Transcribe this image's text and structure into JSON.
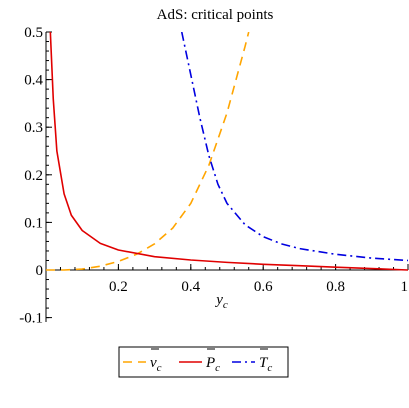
{
  "chart_data": {
    "type": "line",
    "title": "AdS: critical points",
    "xlabel": {
      "base": "y",
      "sub": "c"
    },
    "ylabel": "",
    "xlim": [
      0,
      1
    ],
    "ylim": [
      -0.1,
      0.5
    ],
    "x_ticks": [
      {
        "value": 0.2,
        "label": "0.2"
      },
      {
        "value": 0.4,
        "label": "0.4"
      },
      {
        "value": 0.6,
        "label": "0.6"
      },
      {
        "value": 0.8,
        "label": "0.8"
      },
      {
        "value": 1.0,
        "label": "1"
      }
    ],
    "y_ticks": [
      {
        "value": -0.1,
        "label": "-0.1"
      },
      {
        "value": 0,
        "label": "0"
      },
      {
        "value": 0.1,
        "label": "0.1"
      },
      {
        "value": 0.2,
        "label": "0.2"
      },
      {
        "value": 0.3,
        "label": "0.3"
      },
      {
        "value": 0.4,
        "label": "0.4"
      },
      {
        "value": 0.5,
        "label": "0.5"
      }
    ],
    "grid": false,
    "legend_position": "bottom",
    "series": [
      {
        "name": "v̄_c",
        "legend_base": "v",
        "legend_sub": "c",
        "color": "#FFA500",
        "dash": "dash",
        "x": [
          0.0,
          0.05,
          0.1,
          0.15,
          0.2,
          0.25,
          0.3,
          0.35,
          0.4,
          0.45,
          0.5,
          0.55,
          0.56
        ],
        "y": [
          0.0,
          0.0,
          0.002,
          0.008,
          0.018,
          0.033,
          0.055,
          0.088,
          0.14,
          0.22,
          0.33,
          0.47,
          0.5
        ]
      },
      {
        "name": "P̄_c",
        "legend_base": "P",
        "legend_sub": "c",
        "color": "#E00000",
        "dash": "solid",
        "x": [
          0.012,
          0.02,
          0.03,
          0.05,
          0.07,
          0.1,
          0.15,
          0.2,
          0.3,
          0.4,
          0.5,
          0.6,
          0.7,
          0.8,
          0.9,
          1.0
        ],
        "y": [
          0.5,
          0.36,
          0.25,
          0.16,
          0.115,
          0.083,
          0.056,
          0.042,
          0.028,
          0.021,
          0.016,
          0.012,
          0.009,
          0.006,
          0.003,
          0.0
        ]
      },
      {
        "name": "T̄_c",
        "legend_base": "T",
        "legend_sub": "c",
        "color": "#0000E0",
        "dash": "dashdot",
        "x": [
          0.375,
          0.4,
          0.425,
          0.45,
          0.475,
          0.5,
          0.55,
          0.6,
          0.65,
          0.7,
          0.8,
          0.9,
          1.0
        ],
        "y": [
          0.5,
          0.41,
          0.32,
          0.24,
          0.18,
          0.14,
          0.095,
          0.07,
          0.055,
          0.045,
          0.033,
          0.025,
          0.02
        ]
      }
    ]
  }
}
